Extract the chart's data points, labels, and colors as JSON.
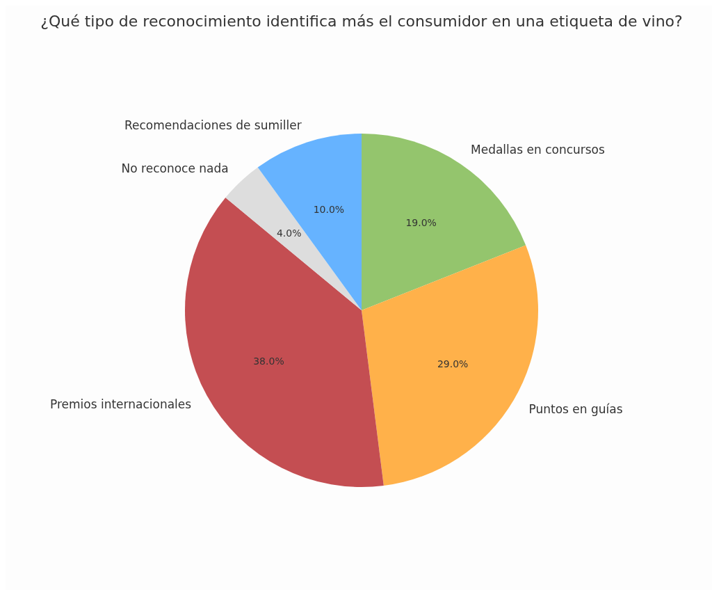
{
  "chart_data": {
    "type": "pie",
    "title": "¿Qué tipo de reconocimiento identifica más el consumidor en una etiqueta de vino?",
    "categories": [
      "Medallas en concursos",
      "Puntos en guías",
      "Premios internacionales",
      "No reconoce nada",
      "Recomendaciones de sumiller"
    ],
    "values": [
      19,
      29,
      38,
      4,
      10
    ],
    "colors": [
      "#94c56d",
      "#ffb14a",
      "#c44e52",
      "#dddddd",
      "#66b3ff"
    ],
    "value_labels": [
      "19.0%",
      "29.0%",
      "38.0%",
      "4.0%",
      "10.0%"
    ]
  }
}
